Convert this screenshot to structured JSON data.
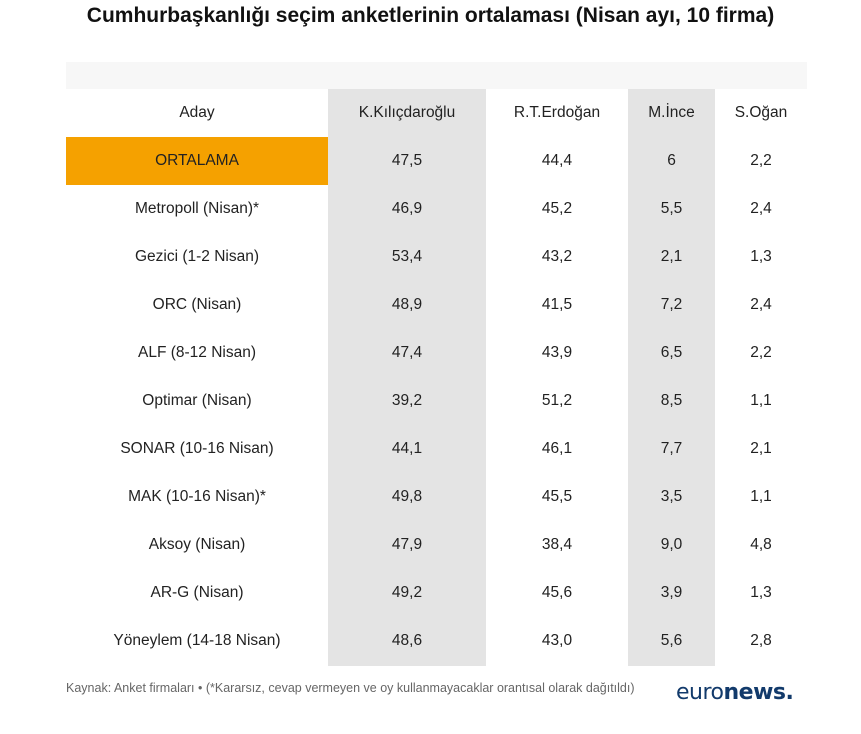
{
  "title": "Cumhurbaşkanlığı seçim anketlerinin ortalaması (Nisan ayı, 10 firma)",
  "chart_data": {
    "type": "table",
    "title": "Cumhurbaşkanlığı seçim anketlerinin ortalaması (Nisan ayı, 10 firma)",
    "columns": [
      "Aday",
      "K.Kılıçdaroğlu",
      "R.T.Erdoğan",
      "M.İnce",
      "S.Oğan"
    ],
    "rows": [
      [
        "ORTALAMA",
        "47,5",
        "44,4",
        "6",
        "2,2"
      ],
      [
        "Metropoll (Nisan)*",
        "46,9",
        "45,2",
        "5,5",
        "2,4"
      ],
      [
        "Gezici (1-2 Nisan)",
        "53,4",
        "43,2",
        "2,1",
        "1,3"
      ],
      [
        "ORC (Nisan)",
        "48,9",
        "41,5",
        "7,2",
        "2,4"
      ],
      [
        "ALF (8-12 Nisan)",
        "47,4",
        "43,9",
        "6,5",
        "2,2"
      ],
      [
        "Optimar (Nisan)",
        "39,2",
        "51,2",
        "8,5",
        "1,1"
      ],
      [
        "SONAR (10-16 Nisan)",
        "44,1",
        "46,1",
        "7,7",
        "2,1"
      ],
      [
        "MAK (10-16 Nisan)*",
        "49,8",
        "45,5",
        "3,5",
        "1,1"
      ],
      [
        "Aksoy (Nisan)",
        "47,9",
        "38,4",
        "9,0",
        "4,8"
      ],
      [
        "AR-G (Nisan)",
        "49,2",
        "45,6",
        "3,9",
        "1,3"
      ],
      [
        "Yöneylem (14-18 Nisan)",
        "48,6",
        "43,0",
        "5,6",
        "2,8"
      ]
    ]
  },
  "footnote": "Kaynak: Anket firmaları • (*Kararsız, cevap vermeyen ve oy kullanmayacaklar orantısal olarak dağıtıldı)",
  "logo": {
    "part1": "euro",
    "part2": "news",
    "dot": "."
  },
  "colors": {
    "highlight": "#f5a100",
    "column_shade": "#e4e4e4",
    "logo": "#123a6b"
  }
}
